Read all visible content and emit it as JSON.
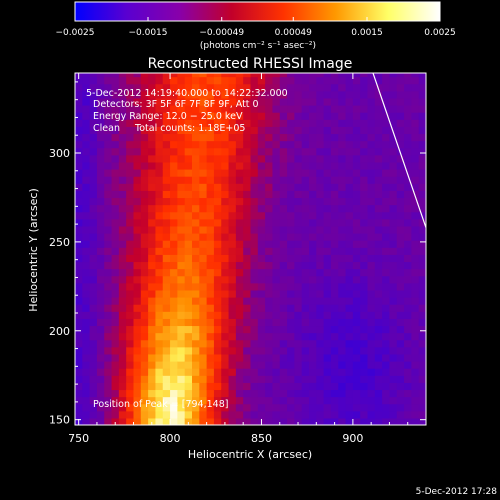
{
  "chart_data": {
    "type": "heatmap",
    "title": "Reconstructed RHESSI Image",
    "xlabel": "Heliocentric X (arcsec)",
    "ylabel": "Heliocentric Y (arcsec)",
    "xlim": [
      748,
      940
    ],
    "ylim": [
      147,
      345
    ],
    "xticks": [
      750,
      800,
      850,
      900
    ],
    "yticks": [
      150,
      200,
      250,
      300
    ],
    "xtick_labels": [
      "750",
      "800",
      "850",
      "900"
    ],
    "ytick_labels": [
      "150",
      "200",
      "250",
      "300"
    ],
    "colorbar": {
      "min": -0.0025,
      "max": 0.0025,
      "ticks": [
        -0.0025,
        -0.0015,
        -0.00049,
        0.00049,
        0.0015,
        0.0025
      ],
      "tick_labels": [
        "−0.0025",
        "−0.0015",
        "−0.00049",
        "0.00049",
        "0.0015",
        "0.0025"
      ],
      "units": "(photons cm⁻² s⁻¹ asec⁻²)",
      "colors": [
        "#0000ff",
        "#5a00d0",
        "#8800aa",
        "#c2002a",
        "#ff3300",
        "#ff9900",
        "#ffff66",
        "#ffffff"
      ]
    },
    "annotations": {
      "time": "5-Dec-2012 14:19:40.000 to 14:22:32.000",
      "detectors": "Detectors: 3F 5F 6F 7F 8F 9F, Att 0",
      "energy": "Energy Range: 12.0 − 25.0 keV",
      "clean": "Clean     Total counts: 1.18E+05",
      "peak": "Position of Peak = [794,148]"
    },
    "peak": [
      794,
      148
    ],
    "limb_line": [
      [
        911,
        345
      ],
      [
        940,
        258
      ]
    ],
    "color_hex": {
      "limb": "#ffffff",
      "background": "#000000",
      "text": "#ffffff"
    }
  },
  "footer": {
    "timestamp": "5-Dec-2012 17:28"
  }
}
